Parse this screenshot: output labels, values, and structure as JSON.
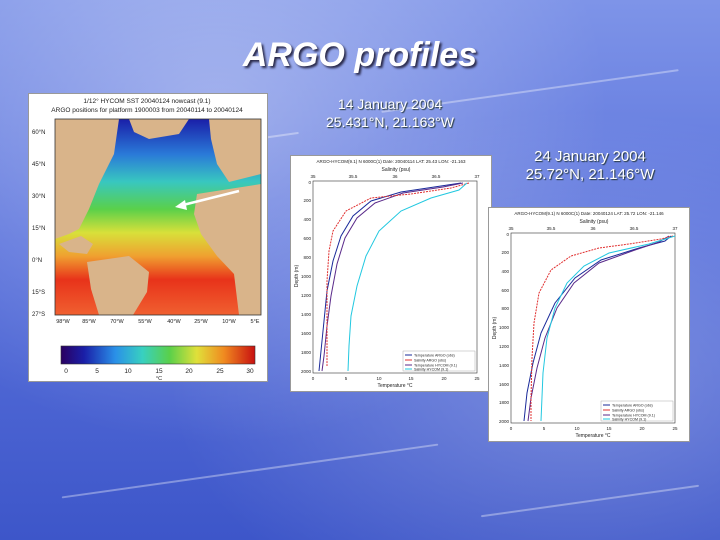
{
  "slide": {
    "title": "ARGO profiles",
    "caption1": {
      "date": "14 January 2004",
      "position": "25.431°N, 21.163°W"
    },
    "caption2": {
      "date": "24 January 2004",
      "position": "25.72°N, 21.146°W"
    }
  },
  "map": {
    "title_line1": "1/12° HYCOM SST 20040124 nowcast (9.1)",
    "title_line2": "ARGO positions for platform 1900003 from 20040114 to 20040124",
    "lat_labels": [
      "60°N",
      "45°N",
      "30°N",
      "15°N",
      "0°N",
      "15°S",
      "27°S"
    ],
    "lon_labels": [
      "98°W",
      "85°W",
      "70°W",
      "55°W",
      "40°W",
      "25°W",
      "10°W",
      "5°E"
    ],
    "colorbar_ticks": [
      "0",
      "5",
      "10",
      "15",
      "20",
      "25",
      "30"
    ],
    "colorbar_unit": "°C",
    "colors": {
      "land": "#d9b48a",
      "cold": "#1a1fa8",
      "warm": "#e8331a"
    }
  },
  "profile1": {
    "header": "ARGO-HYCOM(9.1) N 6000C(1) Date: 20040114 LAT: 25.43 LON: -21.163",
    "salinity_label": "Salinity (psu)",
    "salinity_ticks": [
      "35",
      "35.5",
      "36",
      "36.5",
      "37"
    ],
    "depth_label": "Depth (m)",
    "depth_ticks": [
      "0",
      "200",
      "400",
      "600",
      "800",
      "1000",
      "1200",
      "1400",
      "1600",
      "1800",
      "2000"
    ],
    "temp_label": "Temperature °C",
    "temp_ticks": [
      "0",
      "5",
      "10",
      "15",
      "20",
      "25"
    ],
    "legend": [
      "Temperature ARGO (obs)",
      "Salinity ARGO (obs)",
      "Temperature HYCOM (9.1)",
      "Salinity HYCOM (9.1)"
    ]
  },
  "profile2": {
    "header": "ARGO-HYCOM(9.1) N 6000C(1) Date: 20040124 LAT: 25.72 LON: -21.146",
    "salinity_label": "Salinity (psu)",
    "salinity_ticks": [
      "35",
      "35.5",
      "36",
      "36.5",
      "37"
    ],
    "depth_label": "Depth (m)",
    "depth_ticks": [
      "0",
      "200",
      "400",
      "600",
      "800",
      "1000",
      "1200",
      "1400",
      "1600",
      "1800",
      "2000"
    ],
    "temp_label": "Temperature °C",
    "temp_ticks": [
      "0",
      "5",
      "10",
      "15",
      "20",
      "25"
    ],
    "legend": [
      "Temperature ARGO (obs)",
      "Salinity ARGO (obs)",
      "Temperature HYCOM (9.1)",
      "Salinity HYCOM (9.1)"
    ]
  }
}
